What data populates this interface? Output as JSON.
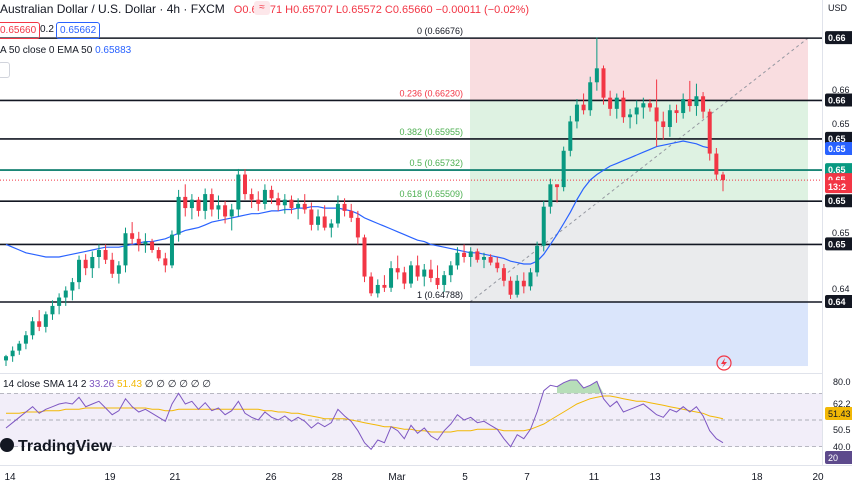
{
  "header": {
    "symbol_title": "Australian Dollar / U.S. Dollar · 4h · FXCM",
    "signal_icon": "≈",
    "ohlc": "O0.65671 H0.65707 L0.65572 C0.65660 −0.00011 (−0.02%)",
    "bid": "0.65660",
    "spread": "0.2",
    "ask": "0.65662",
    "ema_legend_label": "A 50 close 0 EMA 50",
    "ema_legend_value": "0.65883",
    "currency": "USD"
  },
  "rsi_legend": {
    "label": "14 close SMA 14 2",
    "rsi_value": "33.26",
    "sma_value": "51.43",
    "rest": "∅ ∅ ∅ ∅ ∅ ∅"
  },
  "logo": "TradingView",
  "colors": {
    "up": "#089981",
    "down": "#f23645",
    "ema": "#2962ff",
    "rsi": "#7e57c2",
    "rsi_sma": "#f2b806",
    "fib_red": "#f8d7da",
    "fib_green": "#d8f0dd",
    "fib_gray": "#e6e7ea",
    "fib_blue": "#d6e2fb",
    "current_price": "#089981"
  },
  "chart_data": {
    "type": "candlestick",
    "instrument": "AUDUSD",
    "timeframe": "4h",
    "ylim": [
      0.6428,
      0.6682
    ],
    "x_tick_labels": [
      "14",
      "19",
      "21",
      "26",
      "28",
      "Mar",
      "5",
      "7",
      "11",
      "13",
      "18",
      "20"
    ],
    "y_axis_labels": [
      "0.66",
      "0.66",
      "0.66",
      "0.65",
      "0.65",
      "0.65",
      "0.65",
      "0.65",
      "0.65",
      "0.65",
      "0.64",
      "0.64"
    ],
    "right_axis_plain_labels": [
      "0.66",
      "0.66",
      "0.65",
      "0.65",
      "0.64"
    ],
    "right_axis_badges": [
      {
        "text": "0.66",
        "price": 0.66676,
        "color": "#131722"
      },
      {
        "text": "0.66",
        "price": 0.6623,
        "color": "#131722"
      },
      {
        "text": "0.65",
        "price": 0.65955,
        "color": "#131722"
      },
      {
        "text": "0.65",
        "price": 0.65883,
        "color": "#2962ff"
      },
      {
        "text": "0.65",
        "price": 0.65732,
        "color": "#089981"
      },
      {
        "text": "0.65",
        "price": 0.6566,
        "color": "#f23645"
      },
      {
        "text": "13:2",
        "price": 0.6561,
        "color": "#f23645"
      },
      {
        "text": "0.65",
        "price": 0.65509,
        "color": "#131722"
      },
      {
        "text": "0.65",
        "price": 0.652,
        "color": "#131722"
      },
      {
        "text": "0.64",
        "price": 0.64788,
        "color": "#131722"
      }
    ],
    "horizontal_levels": [
      0.66676,
      0.6623,
      0.65955,
      0.65732,
      0.65509,
      0.652,
      0.64788
    ],
    "fib_levels": [
      {
        "label": "0 (0.66676)",
        "price": 0.66676
      },
      {
        "label": "0.236 (0.66230)",
        "price": 0.6623
      },
      {
        "label": "0.382 (0.65955)",
        "price": 0.65955
      },
      {
        "label": "0.5 (0.65732)",
        "price": 0.65732
      },
      {
        "label": "0.618 (0.65509)",
        "price": 0.65509
      },
      {
        "label": "1 (0.64788)",
        "price": 0.64788
      }
    ],
    "fib_below_floor": 0.6433,
    "current_price": 0.6566,
    "candles": [
      [
        0.6437,
        0.6441,
        0.6433,
        0.644
      ],
      [
        0.644,
        0.6447,
        0.6436,
        0.6444
      ],
      [
        0.6444,
        0.6451,
        0.6441,
        0.6449
      ],
      [
        0.6449,
        0.6458,
        0.6445,
        0.6455
      ],
      [
        0.6455,
        0.6468,
        0.6452,
        0.6465
      ],
      [
        0.6465,
        0.6473,
        0.6458,
        0.6461
      ],
      [
        0.6461,
        0.6472,
        0.6457,
        0.647
      ],
      [
        0.647,
        0.648,
        0.6466,
        0.6476
      ],
      [
        0.6476,
        0.6485,
        0.647,
        0.6482
      ],
      [
        0.6482,
        0.649,
        0.6476,
        0.6487
      ],
      [
        0.6487,
        0.6496,
        0.648,
        0.6493
      ],
      [
        0.6493,
        0.6512,
        0.6488,
        0.6509
      ],
      [
        0.6509,
        0.6513,
        0.6498,
        0.6503
      ],
      [
        0.6503,
        0.6515,
        0.6496,
        0.6511
      ],
      [
        0.6511,
        0.652,
        0.6503,
        0.6516
      ],
      [
        0.6516,
        0.652,
        0.6506,
        0.6509
      ],
      [
        0.6509,
        0.6514,
        0.6496,
        0.6499
      ],
      [
        0.6499,
        0.6508,
        0.6492,
        0.6505
      ],
      [
        0.6505,
        0.6532,
        0.65,
        0.6528
      ],
      [
        0.6528,
        0.6536,
        0.652,
        0.6524
      ],
      [
        0.6524,
        0.6529,
        0.6515,
        0.652
      ],
      [
        0.652,
        0.6528,
        0.6514,
        0.6522
      ],
      [
        0.6522,
        0.6524,
        0.6514,
        0.6516
      ],
      [
        0.6516,
        0.6518,
        0.6508,
        0.651
      ],
      [
        0.651,
        0.6514,
        0.65,
        0.6505
      ],
      [
        0.6505,
        0.653,
        0.6503,
        0.6527
      ],
      [
        0.6527,
        0.6559,
        0.6522,
        0.6554
      ],
      [
        0.6554,
        0.6563,
        0.654,
        0.6546
      ],
      [
        0.6546,
        0.6556,
        0.6538,
        0.6552
      ],
      [
        0.6552,
        0.6554,
        0.654,
        0.6544
      ],
      [
        0.6544,
        0.656,
        0.6538,
        0.6556
      ],
      [
        0.6556,
        0.656,
        0.654,
        0.6545
      ],
      [
        0.6545,
        0.6555,
        0.6538,
        0.6548
      ],
      [
        0.6548,
        0.6551,
        0.6535,
        0.654
      ],
      [
        0.654,
        0.6549,
        0.653,
        0.6545
      ],
      [
        0.6545,
        0.6574,
        0.654,
        0.657
      ],
      [
        0.657,
        0.6574,
        0.6552,
        0.6556
      ],
      [
        0.6556,
        0.656,
        0.6546,
        0.6552
      ],
      [
        0.6552,
        0.6558,
        0.6544,
        0.6549
      ],
      [
        0.6549,
        0.6563,
        0.6545,
        0.6559
      ],
      [
        0.6559,
        0.6562,
        0.6549,
        0.6553
      ],
      [
        0.6553,
        0.6557,
        0.6544,
        0.6548
      ],
      [
        0.6548,
        0.6556,
        0.6542,
        0.6552
      ],
      [
        0.6552,
        0.6555,
        0.6542,
        0.6546
      ],
      [
        0.6546,
        0.6553,
        0.6538,
        0.6549
      ],
      [
        0.6549,
        0.6556,
        0.6542,
        0.6545
      ],
      [
        0.6545,
        0.655,
        0.653,
        0.6534
      ],
      [
        0.6534,
        0.6545,
        0.653,
        0.654
      ],
      [
        0.654,
        0.6548,
        0.653,
        0.6532
      ],
      [
        0.6532,
        0.6538,
        0.6525,
        0.6535
      ],
      [
        0.6535,
        0.6555,
        0.6532,
        0.6549
      ],
      [
        0.6549,
        0.6553,
        0.654,
        0.6544
      ],
      [
        0.6544,
        0.6549,
        0.6536,
        0.6539
      ],
      [
        0.6539,
        0.6544,
        0.652,
        0.6525
      ],
      [
        0.6525,
        0.6527,
        0.6493,
        0.6497
      ],
      [
        0.6497,
        0.65,
        0.6483,
        0.6485
      ],
      [
        0.6485,
        0.6495,
        0.6482,
        0.6491
      ],
      [
        0.6491,
        0.6498,
        0.6486,
        0.6489
      ],
      [
        0.6489,
        0.6508,
        0.6486,
        0.6503
      ],
      [
        0.6503,
        0.6512,
        0.6495,
        0.65
      ],
      [
        0.65,
        0.6504,
        0.6488,
        0.6492
      ],
      [
        0.6492,
        0.6508,
        0.6489,
        0.6505
      ],
      [
        0.6505,
        0.6512,
        0.6494,
        0.6497
      ],
      [
        0.6497,
        0.6506,
        0.649,
        0.6502
      ],
      [
        0.6502,
        0.6509,
        0.6493,
        0.6496
      ],
      [
        0.6496,
        0.6505,
        0.6488,
        0.6491
      ],
      [
        0.6491,
        0.6501,
        0.6486,
        0.6498
      ],
      [
        0.6498,
        0.6508,
        0.6493,
        0.6505
      ],
      [
        0.6505,
        0.6518,
        0.6502,
        0.6514
      ],
      [
        0.6514,
        0.652,
        0.6507,
        0.6511
      ],
      [
        0.6511,
        0.6518,
        0.6504,
        0.6515
      ],
      [
        0.6515,
        0.6517,
        0.6507,
        0.6509
      ],
      [
        0.6509,
        0.6514,
        0.6503,
        0.6511
      ],
      [
        0.6511,
        0.6513,
        0.6505,
        0.6507
      ],
      [
        0.6507,
        0.6511,
        0.65,
        0.6503
      ],
      [
        0.6503,
        0.6506,
        0.649,
        0.6494
      ],
      [
        0.6494,
        0.6497,
        0.6481,
        0.6484
      ],
      [
        0.6484,
        0.6498,
        0.6482,
        0.6494
      ],
      [
        0.6494,
        0.65,
        0.6485,
        0.649
      ],
      [
        0.649,
        0.6503,
        0.6487,
        0.65
      ],
      [
        0.65,
        0.6522,
        0.6497,
        0.6519
      ],
      [
        0.6519,
        0.6551,
        0.6515,
        0.6547
      ],
      [
        0.6547,
        0.6567,
        0.6542,
        0.6563
      ],
      [
        0.6563,
        0.6563,
        0.655,
        0.6561
      ],
      [
        0.6561,
        0.659,
        0.6558,
        0.6587
      ],
      [
        0.6587,
        0.6612,
        0.6583,
        0.6608
      ],
      [
        0.6608,
        0.6624,
        0.6603,
        0.662
      ],
      [
        0.662,
        0.6628,
        0.6613,
        0.6616
      ],
      [
        0.6616,
        0.664,
        0.6612,
        0.6636
      ],
      [
        0.6636,
        0.6668,
        0.663,
        0.6646
      ],
      [
        0.6646,
        0.6648,
        0.662,
        0.6625
      ],
      [
        0.6625,
        0.663,
        0.6612,
        0.6617
      ],
      [
        0.6617,
        0.6628,
        0.661,
        0.6625
      ],
      [
        0.6625,
        0.663,
        0.6607,
        0.6611
      ],
      [
        0.6611,
        0.6617,
        0.6603,
        0.6613
      ],
      [
        0.6613,
        0.6623,
        0.6606,
        0.6618
      ],
      [
        0.6618,
        0.6625,
        0.661,
        0.6621
      ],
      [
        0.6621,
        0.6624,
        0.6615,
        0.6618
      ],
      [
        0.6618,
        0.6638,
        0.659,
        0.6608
      ],
      [
        0.6608,
        0.6615,
        0.6595,
        0.6604
      ],
      [
        0.6604,
        0.662,
        0.6597,
        0.6616
      ],
      [
        0.6616,
        0.662,
        0.6607,
        0.6614
      ],
      [
        0.6614,
        0.6628,
        0.661,
        0.6624
      ],
      [
        0.6624,
        0.6637,
        0.6615,
        0.6619
      ],
      [
        0.6619,
        0.6635,
        0.6612,
        0.6626
      ],
      [
        0.6626,
        0.6629,
        0.661,
        0.6615
      ],
      [
        0.6615,
        0.6617,
        0.658,
        0.6585
      ],
      [
        0.6585,
        0.6589,
        0.6566,
        0.657
      ],
      [
        0.657,
        0.6572,
        0.6558,
        0.6566
      ]
    ],
    "ema50": [
      0.652,
      0.6518,
      0.6516,
      0.6514,
      0.6513,
      0.6512,
      0.6511,
      0.6511,
      0.6511,
      0.6512,
      0.6513,
      0.6514,
      0.6515,
      0.6516,
      0.6517,
      0.6518,
      0.6518,
      0.6518,
      0.6519,
      0.652,
      0.6521,
      0.6522,
      0.6522,
      0.6523,
      0.6524,
      0.6526,
      0.6528,
      0.653,
      0.6531,
      0.6532,
      0.6534,
      0.6536,
      0.6537,
      0.6538,
      0.6539,
      0.654,
      0.6541,
      0.6542,
      0.6542,
      0.6543,
      0.6544,
      0.6544,
      0.6545,
      0.6545,
      0.6546,
      0.6546,
      0.6547,
      0.6547,
      0.6546,
      0.6546,
      0.6546,
      0.6545,
      0.6544,
      0.6542,
      0.6539,
      0.6537,
      0.6535,
      0.6533,
      0.6531,
      0.6529,
      0.6527,
      0.6525,
      0.6523,
      0.6522,
      0.652,
      0.6519,
      0.6518,
      0.6517,
      0.6516,
      0.6515,
      0.6514,
      0.6514,
      0.6513,
      0.6512,
      0.6511,
      0.651,
      0.6508,
      0.6507,
      0.6506,
      0.6506,
      0.6508,
      0.6513,
      0.652,
      0.6527,
      0.6535,
      0.6543,
      0.6552,
      0.656,
      0.6566,
      0.657,
      0.6573,
      0.6576,
      0.6578,
      0.658,
      0.6582,
      0.6584,
      0.6586,
      0.6588,
      0.659,
      0.6591,
      0.6592,
      0.6593,
      0.6594,
      0.6593,
      0.6592,
      0.659,
      0.6589
    ],
    "rsi": {
      "ylim": [
        20,
        80
      ],
      "ticks": [
        "80.0",
        "62.2",
        "50.5",
        "40.0",
        "20"
      ],
      "levels": [
        70,
        50,
        30
      ],
      "overbought_highlight": true,
      "rsi_values": [
        44,
        48,
        52,
        56,
        60,
        55,
        58,
        60,
        62,
        63,
        62,
        67,
        60,
        62,
        64,
        59,
        54,
        57,
        66,
        60,
        56,
        58,
        55,
        52,
        49,
        62,
        70,
        62,
        64,
        58,
        63,
        57,
        59,
        54,
        57,
        64,
        55,
        52,
        50,
        56,
        52,
        50,
        53,
        49,
        52,
        49,
        44,
        48,
        45,
        48,
        58,
        53,
        49,
        42,
        33,
        28,
        35,
        33,
        45,
        42,
        36,
        46,
        40,
        44,
        38,
        35,
        42,
        47,
        54,
        50,
        52,
        48,
        49,
        46,
        43,
        36,
        30,
        39,
        36,
        43,
        56,
        72,
        76,
        75,
        78,
        80,
        80,
        74,
        76,
        79,
        66,
        60,
        64,
        56,
        58,
        60,
        62,
        58,
        54,
        52,
        58,
        56,
        60,
        56,
        60,
        53,
        42,
        36,
        33
      ],
      "sma_values": [
        55,
        55,
        55,
        56,
        56,
        56,
        57,
        57,
        57,
        58,
        58,
        58,
        59,
        59,
        59,
        59,
        59,
        59,
        59,
        59,
        59,
        59,
        58,
        58,
        57,
        57,
        58,
        58,
        58,
        58,
        58,
        58,
        58,
        58,
        58,
        58,
        58,
        58,
        58,
        57,
        57,
        56,
        56,
        55,
        55,
        54,
        53,
        52,
        51,
        51,
        51,
        51,
        50,
        49,
        48,
        47,
        46,
        45,
        45,
        44,
        43,
        43,
        42,
        42,
        41,
        41,
        41,
        41,
        42,
        42,
        42,
        43,
        43,
        43,
        43,
        42,
        42,
        42,
        42,
        43,
        45,
        47,
        50,
        53,
        56,
        59,
        62,
        64,
        66,
        67,
        68,
        68,
        67,
        66,
        65,
        64,
        64,
        63,
        62,
        61,
        60,
        59,
        58,
        57,
        56,
        55,
        53,
        52,
        51
      ]
    }
  }
}
